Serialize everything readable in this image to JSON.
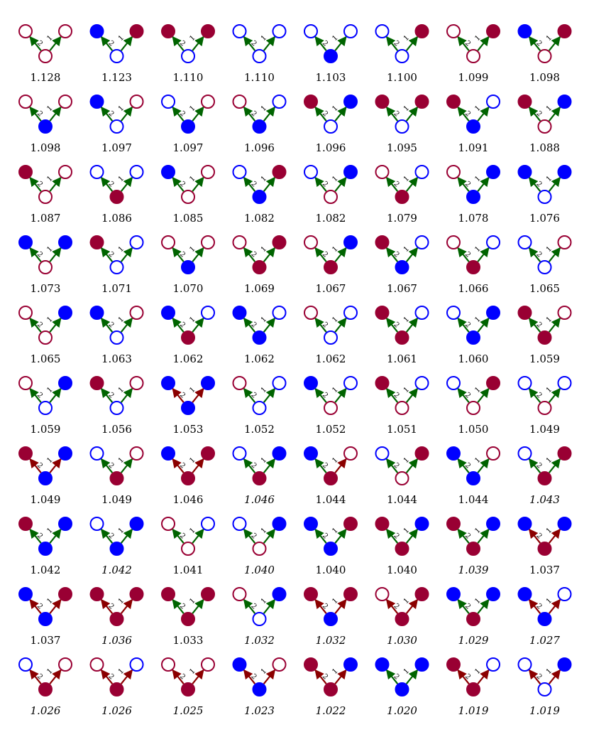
{
  "colors": {
    "blue": "#0000ff",
    "red": "#990033",
    "edge_green": "#006400",
    "edge_red": "#8b0000"
  },
  "edge_labels": {
    "left": "2",
    "right": "1"
  },
  "legend_codes": {
    "node": "[topLeft, topRight, bottom]; code = B/R color + f (filled) or o (open)",
    "edge": "[leftEdge, rightEdge]; g = green, r = dark red"
  },
  "motifs": [
    {
      "label": "1.128",
      "italic": false,
      "nodes": [
        "Ro",
        "Ro",
        "Ro"
      ],
      "edges": [
        "g",
        "g"
      ]
    },
    {
      "label": "1.123",
      "italic": false,
      "nodes": [
        "Bf",
        "Rf",
        "Bo"
      ],
      "edges": [
        "g",
        "g"
      ]
    },
    {
      "label": "1.110",
      "italic": false,
      "nodes": [
        "Rf",
        "Rf",
        "Bo"
      ],
      "edges": [
        "g",
        "g"
      ]
    },
    {
      "label": "1.110",
      "italic": false,
      "nodes": [
        "Bo",
        "Bo",
        "Bo"
      ],
      "edges": [
        "g",
        "g"
      ]
    },
    {
      "label": "1.103",
      "italic": false,
      "nodes": [
        "Bo",
        "Bo",
        "Bf"
      ],
      "edges": [
        "g",
        "g"
      ]
    },
    {
      "label": "1.100",
      "italic": false,
      "nodes": [
        "Bo",
        "Rf",
        "Bo"
      ],
      "edges": [
        "g",
        "g"
      ]
    },
    {
      "label": "1.099",
      "italic": false,
      "nodes": [
        "Ro",
        "Rf",
        "Ro"
      ],
      "edges": [
        "g",
        "g"
      ]
    },
    {
      "label": "1.098",
      "italic": false,
      "nodes": [
        "Bf",
        "Rf",
        "Ro"
      ],
      "edges": [
        "g",
        "g"
      ]
    },
    {
      "label": "1.098",
      "italic": false,
      "nodes": [
        "Ro",
        "Ro",
        "Bf"
      ],
      "edges": [
        "g",
        "g"
      ]
    },
    {
      "label": "1.097",
      "italic": false,
      "nodes": [
        "Bf",
        "Ro",
        "Bo"
      ],
      "edges": [
        "g",
        "g"
      ]
    },
    {
      "label": "1.097",
      "italic": false,
      "nodes": [
        "Bo",
        "Ro",
        "Bf"
      ],
      "edges": [
        "g",
        "g"
      ]
    },
    {
      "label": "1.096",
      "italic": false,
      "nodes": [
        "Ro",
        "Bo",
        "Bf"
      ],
      "edges": [
        "g",
        "g"
      ]
    },
    {
      "label": "1.096",
      "italic": false,
      "nodes": [
        "Rf",
        "Bf",
        "Bo"
      ],
      "edges": [
        "g",
        "g"
      ]
    },
    {
      "label": "1.095",
      "italic": false,
      "nodes": [
        "Rf",
        "Rf",
        "Bo"
      ],
      "edges": [
        "g",
        "g"
      ]
    },
    {
      "label": "1.091",
      "italic": false,
      "nodes": [
        "Rf",
        "Bo",
        "Bf"
      ],
      "edges": [
        "g",
        "g"
      ]
    },
    {
      "label": "1.088",
      "italic": false,
      "nodes": [
        "Rf",
        "Bf",
        "Ro"
      ],
      "edges": [
        "g",
        "g"
      ]
    },
    {
      "label": "1.087",
      "italic": false,
      "nodes": [
        "Rf",
        "Ro",
        "Ro"
      ],
      "edges": [
        "g",
        "g"
      ]
    },
    {
      "label": "1.086",
      "italic": false,
      "nodes": [
        "Bo",
        "Bo",
        "Rf"
      ],
      "edges": [
        "g",
        "g"
      ]
    },
    {
      "label": "1.085",
      "italic": false,
      "nodes": [
        "Bf",
        "Ro",
        "Ro"
      ],
      "edges": [
        "g",
        "g"
      ]
    },
    {
      "label": "1.082",
      "italic": false,
      "nodes": [
        "Bo",
        "Rf",
        "Bf"
      ],
      "edges": [
        "g",
        "g"
      ]
    },
    {
      "label": "1.082",
      "italic": false,
      "nodes": [
        "Bo",
        "Bf",
        "Ro"
      ],
      "edges": [
        "g",
        "g"
      ]
    },
    {
      "label": "1.079",
      "italic": false,
      "nodes": [
        "Ro",
        "Bo",
        "Rf"
      ],
      "edges": [
        "g",
        "g"
      ]
    },
    {
      "label": "1.078",
      "italic": false,
      "nodes": [
        "Ro",
        "Bf",
        "Bf"
      ],
      "edges": [
        "g",
        "g"
      ]
    },
    {
      "label": "1.076",
      "italic": false,
      "nodes": [
        "Bf",
        "Bf",
        "Bo"
      ],
      "edges": [
        "g",
        "g"
      ]
    },
    {
      "label": "1.073",
      "italic": false,
      "nodes": [
        "Bf",
        "Bf",
        "Ro"
      ],
      "edges": [
        "g",
        "g"
      ]
    },
    {
      "label": "1.071",
      "italic": false,
      "nodes": [
        "Rf",
        "Bo",
        "Bo"
      ],
      "edges": [
        "g",
        "g"
      ]
    },
    {
      "label": "1.070",
      "italic": false,
      "nodes": [
        "Ro",
        "Ro",
        "Bf"
      ],
      "edges": [
        "g",
        "g"
      ]
    },
    {
      "label": "1.069",
      "italic": false,
      "nodes": [
        "Ro",
        "Rf",
        "Rf"
      ],
      "edges": [
        "g",
        "g"
      ]
    },
    {
      "label": "1.067",
      "italic": false,
      "nodes": [
        "Ro",
        "Bf",
        "Rf"
      ],
      "edges": [
        "g",
        "g"
      ]
    },
    {
      "label": "1.067",
      "italic": false,
      "nodes": [
        "Rf",
        "Bo",
        "Bf"
      ],
      "edges": [
        "g",
        "g"
      ]
    },
    {
      "label": "1.066",
      "italic": false,
      "nodes": [
        "Ro",
        "Bo",
        "Rf"
      ],
      "edges": [
        "g",
        "g"
      ]
    },
    {
      "label": "1.065",
      "italic": false,
      "nodes": [
        "Bo",
        "Ro",
        "Bo"
      ],
      "edges": [
        "g",
        "g"
      ]
    },
    {
      "label": "1.065",
      "italic": false,
      "nodes": [
        "Ro",
        "Bf",
        "Ro"
      ],
      "edges": [
        "g",
        "g"
      ]
    },
    {
      "label": "1.063",
      "italic": false,
      "nodes": [
        "Bf",
        "Ro",
        "Bo"
      ],
      "edges": [
        "g",
        "g"
      ]
    },
    {
      "label": "1.062",
      "italic": false,
      "nodes": [
        "Bf",
        "Bo",
        "Rf"
      ],
      "edges": [
        "g",
        "g"
      ]
    },
    {
      "label": "1.062",
      "italic": false,
      "nodes": [
        "Bf",
        "Bo",
        "Bf"
      ],
      "edges": [
        "g",
        "g"
      ]
    },
    {
      "label": "1.062",
      "italic": false,
      "nodes": [
        "Ro",
        "Bo",
        "Bo"
      ],
      "edges": [
        "g",
        "g"
      ]
    },
    {
      "label": "1.061",
      "italic": false,
      "nodes": [
        "Rf",
        "Bo",
        "Rf"
      ],
      "edges": [
        "g",
        "g"
      ]
    },
    {
      "label": "1.060",
      "italic": false,
      "nodes": [
        "Bo",
        "Bf",
        "Bf"
      ],
      "edges": [
        "g",
        "g"
      ]
    },
    {
      "label": "1.059",
      "italic": false,
      "nodes": [
        "Rf",
        "Ro",
        "Rf"
      ],
      "edges": [
        "g",
        "g"
      ]
    },
    {
      "label": "1.059",
      "italic": false,
      "nodes": [
        "Ro",
        "Bf",
        "Bo"
      ],
      "edges": [
        "g",
        "g"
      ]
    },
    {
      "label": "1.056",
      "italic": false,
      "nodes": [
        "Rf",
        "Ro",
        "Bo"
      ],
      "edges": [
        "g",
        "g"
      ]
    },
    {
      "label": "1.053",
      "italic": false,
      "nodes": [
        "Bf",
        "Bf",
        "Bf"
      ],
      "edges": [
        "r",
        "r"
      ]
    },
    {
      "label": "1.052",
      "italic": false,
      "nodes": [
        "Ro",
        "Bo",
        "Bo"
      ],
      "edges": [
        "g",
        "g"
      ]
    },
    {
      "label": "1.052",
      "italic": false,
      "nodes": [
        "Bf",
        "Bo",
        "Ro"
      ],
      "edges": [
        "g",
        "g"
      ]
    },
    {
      "label": "1.051",
      "italic": false,
      "nodes": [
        "Rf",
        "Bo",
        "Ro"
      ],
      "edges": [
        "g",
        "g"
      ]
    },
    {
      "label": "1.050",
      "italic": false,
      "nodes": [
        "Bo",
        "Rf",
        "Ro"
      ],
      "edges": [
        "g",
        "g"
      ]
    },
    {
      "label": "1.049",
      "italic": false,
      "nodes": [
        "Bo",
        "Bo",
        "Ro"
      ],
      "edges": [
        "g",
        "g"
      ]
    },
    {
      "label": "1.049",
      "italic": false,
      "nodes": [
        "Rf",
        "Bf",
        "Bf"
      ],
      "edges": [
        "r",
        "r"
      ]
    },
    {
      "label": "1.049",
      "italic": false,
      "nodes": [
        "Bo",
        "Ro",
        "Rf"
      ],
      "edges": [
        "g",
        "g"
      ]
    },
    {
      "label": "1.046",
      "italic": false,
      "nodes": [
        "Bf",
        "Rf",
        "Rf"
      ],
      "edges": [
        "r",
        "r"
      ]
    },
    {
      "label": "1.046",
      "italic": true,
      "nodes": [
        "Bo",
        "Bf",
        "Rf"
      ],
      "edges": [
        "g",
        "g"
      ]
    },
    {
      "label": "1.044",
      "italic": false,
      "nodes": [
        "Bf",
        "Ro",
        "Rf"
      ],
      "edges": [
        "g",
        "r"
      ]
    },
    {
      "label": "1.044",
      "italic": false,
      "nodes": [
        "Bo",
        "Rf",
        "Ro"
      ],
      "edges": [
        "g",
        "g"
      ]
    },
    {
      "label": "1.044",
      "italic": false,
      "nodes": [
        "Bf",
        "Ro",
        "Bf"
      ],
      "edges": [
        "g",
        "g"
      ]
    },
    {
      "label": "1.043",
      "italic": true,
      "nodes": [
        "Bo",
        "Rf",
        "Rf"
      ],
      "edges": [
        "g",
        "g"
      ]
    },
    {
      "label": "1.042",
      "italic": false,
      "nodes": [
        "Rf",
        "Bf",
        "Bf"
      ],
      "edges": [
        "g",
        "g"
      ]
    },
    {
      "label": "1.042",
      "italic": true,
      "nodes": [
        "Bo",
        "Bf",
        "Bf"
      ],
      "edges": [
        "g",
        "g"
      ]
    },
    {
      "label": "1.041",
      "italic": false,
      "nodes": [
        "Ro",
        "Bo",
        "Ro"
      ],
      "edges": [
        "g",
        "g"
      ]
    },
    {
      "label": "1.040",
      "italic": true,
      "nodes": [
        "Bo",
        "Bf",
        "Ro"
      ],
      "edges": [
        "g",
        "g"
      ]
    },
    {
      "label": "1.040",
      "italic": false,
      "nodes": [
        "Bf",
        "Rf",
        "Bf"
      ],
      "edges": [
        "g",
        "g"
      ]
    },
    {
      "label": "1.040",
      "italic": false,
      "nodes": [
        "Rf",
        "Bf",
        "Rf"
      ],
      "edges": [
        "g",
        "g"
      ]
    },
    {
      "label": "1.039",
      "italic": true,
      "nodes": [
        "Rf",
        "Bf",
        "Rf"
      ],
      "edges": [
        "g",
        "g"
      ]
    },
    {
      "label": "1.037",
      "italic": false,
      "nodes": [
        "Bf",
        "Bf",
        "Rf"
      ],
      "edges": [
        "r",
        "r"
      ]
    },
    {
      "label": "1.037",
      "italic": false,
      "nodes": [
        "Bf",
        "Rf",
        "Bf"
      ],
      "edges": [
        "r",
        "r"
      ]
    },
    {
      "label": "1.036",
      "italic": true,
      "nodes": [
        "Rf",
        "Rf",
        "Rf"
      ],
      "edges": [
        "r",
        "r"
      ]
    },
    {
      "label": "1.033",
      "italic": false,
      "nodes": [
        "Rf",
        "Rf",
        "Rf"
      ],
      "edges": [
        "g",
        "g"
      ]
    },
    {
      "label": "1.032",
      "italic": true,
      "nodes": [
        "Ro",
        "Bf",
        "Bo"
      ],
      "edges": [
        "g",
        "g"
      ]
    },
    {
      "label": "1.032",
      "italic": true,
      "nodes": [
        "Rf",
        "Rf",
        "Bf"
      ],
      "edges": [
        "r",
        "r"
      ]
    },
    {
      "label": "1.030",
      "italic": true,
      "nodes": [
        "Ro",
        "Rf",
        "Rf"
      ],
      "edges": [
        "r",
        "r"
      ]
    },
    {
      "label": "1.029",
      "italic": true,
      "nodes": [
        "Bf",
        "Bf",
        "Rf"
      ],
      "edges": [
        "g",
        "g"
      ]
    },
    {
      "label": "1.027",
      "italic": true,
      "nodes": [
        "Bf",
        "Bo",
        "Bf"
      ],
      "edges": [
        "r",
        "r"
      ]
    },
    {
      "label": "1.026",
      "italic": true,
      "nodes": [
        "Bo",
        "Ro",
        "Rf"
      ],
      "edges": [
        "r",
        "r"
      ]
    },
    {
      "label": "1.026",
      "italic": true,
      "nodes": [
        "Ro",
        "Bo",
        "Rf"
      ],
      "edges": [
        "r",
        "r"
      ]
    },
    {
      "label": "1.025",
      "italic": true,
      "nodes": [
        "Ro",
        "Ro",
        "Rf"
      ],
      "edges": [
        "r",
        "r"
      ]
    },
    {
      "label": "1.023",
      "italic": true,
      "nodes": [
        "Bf",
        "Ro",
        "Bf"
      ],
      "edges": [
        "r",
        "r"
      ]
    },
    {
      "label": "1.022",
      "italic": true,
      "nodes": [
        "Rf",
        "Bf",
        "Rf"
      ],
      "edges": [
        "r",
        "r"
      ]
    },
    {
      "label": "1.020",
      "italic": true,
      "nodes": [
        "Bf",
        "Bf",
        "Bf"
      ],
      "edges": [
        "g",
        "g"
      ]
    },
    {
      "label": "1.019",
      "italic": true,
      "nodes": [
        "Rf",
        "Bo",
        "Rf"
      ],
      "edges": [
        "r",
        "r"
      ]
    },
    {
      "label": "1.019",
      "italic": true,
      "nodes": [
        "Bo",
        "Bf",
        "Bo"
      ],
      "edges": [
        "r",
        "r"
      ]
    }
  ]
}
